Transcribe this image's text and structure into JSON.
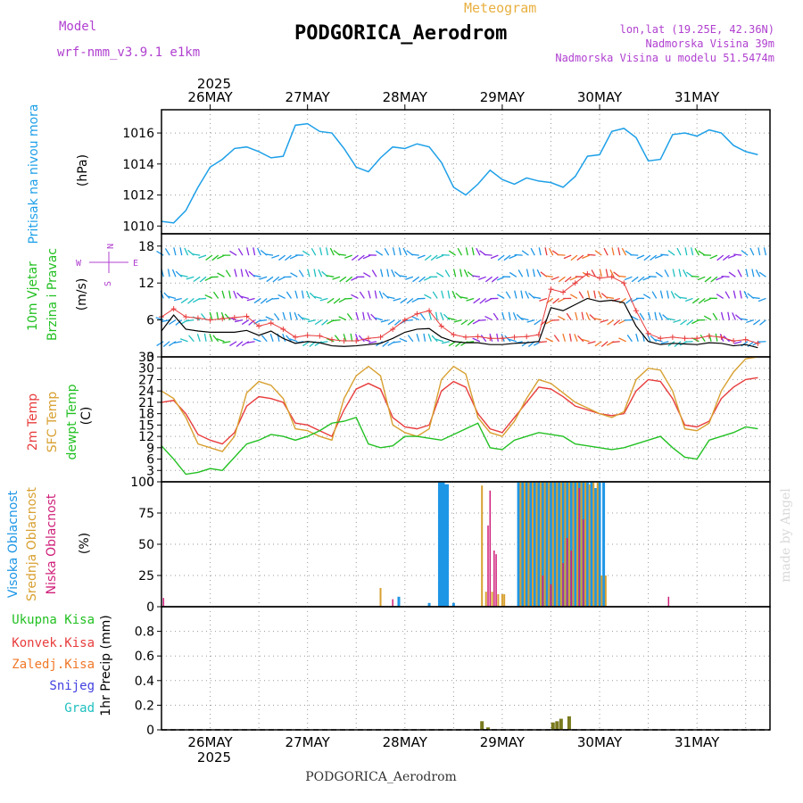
{
  "colors": {
    "pressure": "#1ea0e8",
    "temp2m": "#e83c3c",
    "sfc_temp": "#d8a030",
    "dewpoint": "#22c022",
    "high_cloud": "#1e96e6",
    "mid_cloud": "#d8a030",
    "low_cloud": "#d0207a",
    "precip_total": "#22c022",
    "precip_conv": "#e83c3c",
    "precip_frozen": "#f07828",
    "snow": "#4040e0",
    "hail": "#20c0c0",
    "model_text": "#b040d0",
    "info_text": "#b040d0",
    "meteogram_text": "#e8b040",
    "watermark": "#d8d8d8",
    "wind_speed": "#000000",
    "wind_gust": "#e83c3c"
  },
  "header": {
    "model_label": "Model",
    "model_name": "wrf-nmm_v3.9.1 e1km",
    "meteogram_label": "Meteogram",
    "station": "PODGORICA_Aerodrom",
    "lonlat": "lon,lat (19.25E, 42.36N)",
    "elevation": "Nadmorska Visina 39m",
    "model_elevation": "Nadmorska Visina u modelu 51.5474m"
  },
  "footer": {
    "station": "PODGORICA_Aerodrom",
    "watermark": "made by Angel"
  },
  "compass": {
    "n": "N",
    "s": "S",
    "e": "E",
    "w": "W"
  },
  "chart_data": [
    {
      "type": "line",
      "panel": "pressure",
      "ylabel": "Pritisak na nivou mora",
      "unit": "(hPa)",
      "top_year": "2025",
      "x_ticks": [
        "26MAY",
        "27MAY",
        "28MAY",
        "29MAY",
        "30MAY",
        "31MAY"
      ],
      "ylim": [
        1009.5,
        1017.5
      ],
      "y_ticks": [
        1010,
        1012,
        1014,
        1016
      ],
      "x_hours": [
        0,
        3,
        6,
        9,
        12,
        15,
        18,
        21,
        24,
        27,
        30,
        33,
        36,
        39,
        42,
        45,
        48,
        51,
        54,
        57,
        60,
        63,
        66,
        69,
        72,
        75,
        78,
        81,
        84,
        87,
        90,
        93,
        96,
        99,
        102,
        105,
        108,
        111,
        114,
        117,
        120,
        123,
        126,
        129,
        132,
        135,
        138,
        141,
        144,
        147
      ],
      "series": [
        {
          "values": [
            1010.3,
            1010.2,
            1011.0,
            1012.5,
            1013.8,
            1014.3,
            1015.0,
            1015.1,
            1014.8,
            1014.4,
            1014.5,
            1016.5,
            1016.6,
            1016.1,
            1016.0,
            1015.0,
            1013.8,
            1013.5,
            1014.4,
            1015.1,
            1015.0,
            1015.3,
            1015.1,
            1014.1,
            1012.5,
            1012.0,
            1012.7,
            1013.6,
            1013.0,
            1012.7,
            1013.1,
            1012.9,
            1012.8,
            1012.5,
            1013.2,
            1014.5,
            1014.6,
            1016.1,
            1016.3,
            1015.7,
            1014.2,
            1014.3,
            1015.9,
            1016.0,
            1015.8,
            1016.2,
            1016.0,
            1015.2,
            1014.8,
            1014.6
          ]
        }
      ]
    },
    {
      "type": "line",
      "panel": "wind",
      "ylabel": [
        "10m Vjetar",
        "Brzina i Pravac"
      ],
      "unit": "(m/s)",
      "ylim": [
        0,
        20
      ],
      "y_ticks": [
        0,
        6,
        12,
        18
      ],
      "x_hours": [
        0,
        3,
        6,
        9,
        12,
        15,
        18,
        21,
        24,
        27,
        30,
        33,
        36,
        39,
        42,
        45,
        48,
        51,
        54,
        57,
        60,
        63,
        66,
        69,
        72,
        75,
        78,
        81,
        84,
        87,
        90,
        93,
        96,
        99,
        102,
        105,
        108,
        111,
        114,
        117,
        120,
        123,
        126,
        129,
        132,
        135,
        138,
        141,
        144,
        147
      ],
      "series": [
        {
          "name": "speed",
          "values": [
            4.2,
            6.8,
            4.5,
            4.2,
            4.0,
            4.0,
            4.0,
            4.3,
            3.5,
            4.2,
            3.0,
            2.2,
            2.5,
            2.3,
            1.8,
            1.7,
            1.8,
            2.0,
            2.2,
            3.0,
            4.0,
            4.5,
            4.6,
            3.2,
            2.5,
            2.3,
            2.3,
            2.0,
            2.0,
            2.2,
            2.3,
            2.5,
            8.0,
            7.5,
            8.5,
            9.5,
            9.0,
            9.2,
            8.8,
            5.0,
            2.5,
            2.0,
            2.2,
            2.1,
            2.0,
            2.3,
            2.2,
            1.8,
            2.0,
            1.5
          ]
        },
        {
          "name": "gust",
          "values": [
            6.5,
            7.8,
            6.5,
            6.3,
            6.0,
            6.2,
            6.4,
            6.6,
            5.0,
            5.5,
            4.5,
            3.2,
            3.5,
            3.4,
            2.8,
            2.6,
            2.6,
            3.0,
            3.2,
            4.5,
            6.0,
            7.0,
            7.5,
            5.0,
            3.6,
            3.2,
            3.3,
            3.0,
            3.0,
            3.2,
            3.3,
            3.6,
            11.0,
            10.5,
            12.0,
            13.5,
            12.8,
            13.0,
            12.0,
            7.5,
            3.8,
            3.0,
            3.2,
            3.0,
            3.0,
            3.4,
            3.2,
            2.6,
            2.8,
            2.2
          ]
        }
      ]
    },
    {
      "type": "line",
      "panel": "temperature",
      "ylabel": [
        "2m Temp",
        "SFC Temp",
        "dewpt Temp"
      ],
      "unit": "(C)",
      "ylim": [
        0,
        33
      ],
      "y_ticks": [
        0,
        3,
        6,
        9,
        12,
        15,
        18,
        21,
        24,
        27,
        30,
        33
      ],
      "x_hours": [
        0,
        3,
        6,
        9,
        12,
        15,
        18,
        21,
        24,
        27,
        30,
        33,
        36,
        39,
        42,
        45,
        48,
        51,
        54,
        57,
        60,
        63,
        66,
        69,
        72,
        75,
        78,
        81,
        84,
        87,
        90,
        93,
        96,
        99,
        102,
        105,
        108,
        111,
        114,
        117,
        120,
        123,
        126,
        129,
        132,
        135,
        138,
        141,
        144,
        147
      ],
      "series": [
        {
          "name": "2m Temp",
          "values": [
            21.0,
            21.5,
            18.0,
            12.5,
            11.0,
            10.0,
            13.0,
            20.0,
            22.5,
            22.0,
            21.0,
            15.5,
            15.0,
            13.5,
            12.0,
            19.0,
            24.5,
            26.0,
            24.5,
            17.0,
            14.5,
            14.0,
            15.0,
            24.0,
            26.5,
            25.0,
            18.0,
            14.0,
            13.0,
            17.0,
            21.0,
            25.0,
            24.5,
            22.5,
            20.0,
            19.0,
            18.0,
            17.5,
            18.0,
            24.0,
            27.0,
            26.5,
            22.0,
            15.0,
            14.5,
            16.0,
            22.0,
            25.0,
            27.0,
            27.5
          ]
        },
        {
          "name": "SFC Temp",
          "values": [
            24.0,
            22.0,
            17.0,
            10.0,
            9.0,
            8.0,
            12.0,
            23.5,
            26.5,
            25.5,
            22.0,
            14.0,
            13.5,
            12.0,
            11.0,
            22.0,
            28.0,
            30.5,
            28.0,
            15.0,
            13.0,
            12.0,
            14.0,
            27.0,
            30.5,
            28.5,
            17.0,
            13.0,
            12.0,
            16.0,
            22.0,
            27.0,
            26.0,
            23.5,
            21.0,
            19.5,
            18.0,
            17.0,
            18.5,
            27.0,
            30.0,
            29.5,
            24.0,
            14.0,
            13.5,
            15.5,
            24.0,
            29.0,
            32.5,
            33.0
          ]
        },
        {
          "name": "dewpt Temp",
          "values": [
            9.5,
            6.0,
            2.0,
            2.5,
            3.5,
            3.0,
            6.5,
            10.0,
            11.0,
            12.5,
            12.0,
            11.0,
            12.0,
            13.5,
            15.5,
            16.0,
            17.0,
            10.0,
            9.0,
            9.5,
            12.0,
            12.0,
            11.5,
            11.0,
            12.5,
            14.0,
            15.5,
            9.0,
            8.5,
            11.0,
            12.0,
            13.0,
            12.5,
            12.0,
            10.0,
            9.5,
            9.0,
            8.5,
            9.0,
            10.0,
            11.0,
            12.0,
            9.0,
            6.5,
            6.0,
            11.0,
            12.0,
            13.0,
            14.5,
            14.0
          ]
        }
      ]
    },
    {
      "type": "bar",
      "panel": "clouds",
      "ylabel": [
        "Visoka Oblacnost",
        "Srednja Oblacnost",
        "Niska Oblacnost"
      ],
      "unit": "(%)",
      "ylim": [
        0,
        100
      ],
      "y_ticks": [
        0,
        25,
        50,
        75,
        100
      ],
      "series": [
        {
          "name": "Visoka Oblacnost",
          "points": [
            [
              58.5,
              8
            ],
            [
              66.0,
              3
            ],
            [
              68.5,
              100
            ],
            [
              69.0,
              100
            ],
            [
              69.5,
              100
            ],
            [
              70.0,
              98
            ],
            [
              70.5,
              98
            ],
            [
              72.0,
              3
            ],
            [
              88.0,
              100
            ],
            [
              89.0,
              100
            ],
            [
              90.0,
              100
            ],
            [
              91.0,
              100
            ],
            [
              92.0,
              100
            ],
            [
              93.0,
              100
            ],
            [
              94.0,
              100
            ],
            [
              95.0,
              100
            ],
            [
              96.0,
              100
            ],
            [
              97.0,
              100
            ],
            [
              98.0,
              100
            ],
            [
              99.0,
              100
            ],
            [
              100.0,
              100
            ],
            [
              101.0,
              100
            ],
            [
              102.0,
              100
            ],
            [
              103.0,
              100
            ],
            [
              104.0,
              100
            ],
            [
              105.0,
              100
            ],
            [
              106.0,
              100
            ],
            [
              107.0,
              95
            ],
            [
              108.0,
              100
            ],
            [
              109.0,
              100
            ]
          ]
        },
        {
          "name": "Srednja Oblacnost",
          "points": [
            [
              54.0,
              15
            ],
            [
              79.0,
              97
            ],
            [
              80.0,
              12
            ],
            [
              81.5,
              12
            ],
            [
              83.0,
              10
            ],
            [
              84.0,
              10
            ],
            [
              84.5,
              10
            ],
            [
              88.5,
              100
            ],
            [
              89.5,
              100
            ],
            [
              90.5,
              100
            ],
            [
              91.5,
              100
            ],
            [
              92.5,
              100
            ],
            [
              93.5,
              100
            ],
            [
              94.5,
              100
            ],
            [
              95.5,
              100
            ],
            [
              96.5,
              100
            ],
            [
              97.5,
              100
            ],
            [
              98.5,
              100
            ],
            [
              99.5,
              100
            ],
            [
              100.5,
              100
            ],
            [
              101.5,
              100
            ],
            [
              102.5,
              100
            ],
            [
              103.5,
              100
            ],
            [
              104.5,
              100
            ],
            [
              105.5,
              98
            ],
            [
              106.5,
              100
            ],
            [
              107.5,
              100
            ],
            [
              108.5,
              25
            ],
            [
              109.5,
              25
            ]
          ]
        },
        {
          "name": "Niska Oblacnost",
          "points": [
            [
              0.5,
              7
            ],
            [
              57.0,
              6
            ],
            [
              80.5,
              65
            ],
            [
              81.0,
              93
            ],
            [
              82.0,
              45
            ],
            [
              82.5,
              42
            ],
            [
              94.0,
              25
            ],
            [
              96.0,
              18
            ],
            [
              99.0,
              35
            ],
            [
              100.0,
              55
            ],
            [
              101.0,
              45
            ],
            [
              103.0,
              95
            ],
            [
              104.0,
              70
            ],
            [
              125.0,
              8
            ]
          ]
        }
      ]
    },
    {
      "type": "bar",
      "panel": "precipitation",
      "legend": [
        "Ukupna Kisa",
        "Konvek.Kisa",
        "Zaledj.Kisa",
        "Snijeg",
        "Grad"
      ],
      "ylabel": "1hr Precip (mm)",
      "x_ticks": [
        "26MAY",
        "27MAY",
        "28MAY",
        "29MAY",
        "30MAY",
        "31MAY"
      ],
      "bottom_year": "2025",
      "ylim": [
        0,
        1.0
      ],
      "y_ticks": [
        0,
        0.2,
        0.4,
        0.6,
        0.8
      ],
      "series": [
        {
          "name": "Ukupna Kisa",
          "points": [
            [
              79.0,
              0.07
            ],
            [
              80.5,
              0.02
            ],
            [
              96.5,
              0.06
            ],
            [
              97.5,
              0.07
            ],
            [
              98.5,
              0.09
            ],
            [
              100.5,
              0.11
            ]
          ]
        }
      ]
    }
  ]
}
